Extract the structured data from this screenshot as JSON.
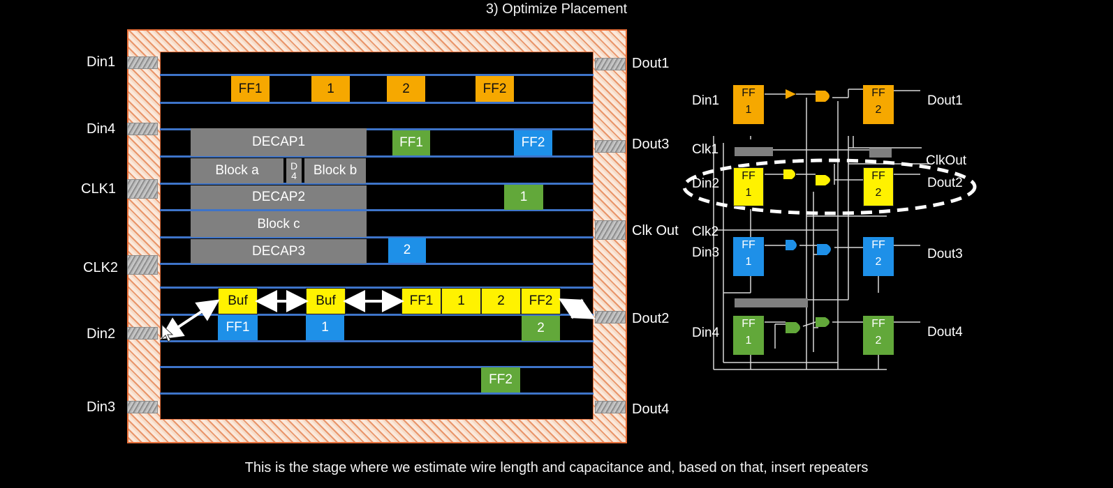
{
  "slide": {
    "title": "3) Optimize Placement",
    "caption": "This is the stage where we estimate wire length and capacitance and, based on that, insert repeaters"
  },
  "floorplan": {
    "left_pins": [
      "Din1",
      "Din4",
      "CLK1",
      "CLK2",
      "Din2",
      "Din3"
    ],
    "right_pins": [
      "Dout1",
      "Dout3",
      "Clk Out",
      "Dout2",
      "Dout4"
    ],
    "blocks": {
      "decap1": "DECAP1",
      "block_a": "Block a",
      "d4": "D\n4",
      "block_b": "Block b",
      "decap2": "DECAP2",
      "block_c": "Block c",
      "decap3": "DECAP3"
    },
    "cells": {
      "orange_ff1": "FF1",
      "orange_1": "1",
      "orange_2": "2",
      "orange_ff2": "FF2",
      "green_ff1": "FF1",
      "green_1": "1",
      "green_2": "2",
      "green_ff2": "FF2",
      "blue_ff2": "FF2",
      "blue_2": "2",
      "blue_ff1": "FF1",
      "blue_1": "1",
      "buf_1": "Buf",
      "buf_2": "Buf",
      "yellow_ff1": "FF1",
      "yellow_1": "1",
      "yellow_2": "2",
      "yellow_ff2": "FF2"
    },
    "colors": {
      "orange": "#f6a800",
      "green": "#62a83a",
      "blue": "#1e90e8",
      "yellow": "#fff200",
      "row": "#3e74c9",
      "ring": "#e8703a"
    }
  },
  "schematic": {
    "left_labels": [
      "Din1",
      "Clk1",
      "Din2",
      "Clk2",
      "Din3",
      "Din4"
    ],
    "right_labels": [
      "Dout1",
      "ClkOut",
      "Dout2",
      "Dout3",
      "Dout4"
    ],
    "ff_top": "FF",
    "ff_in": "1",
    "ff_out": "2",
    "highlight": "dashed-ellipse-around-din2-path"
  }
}
